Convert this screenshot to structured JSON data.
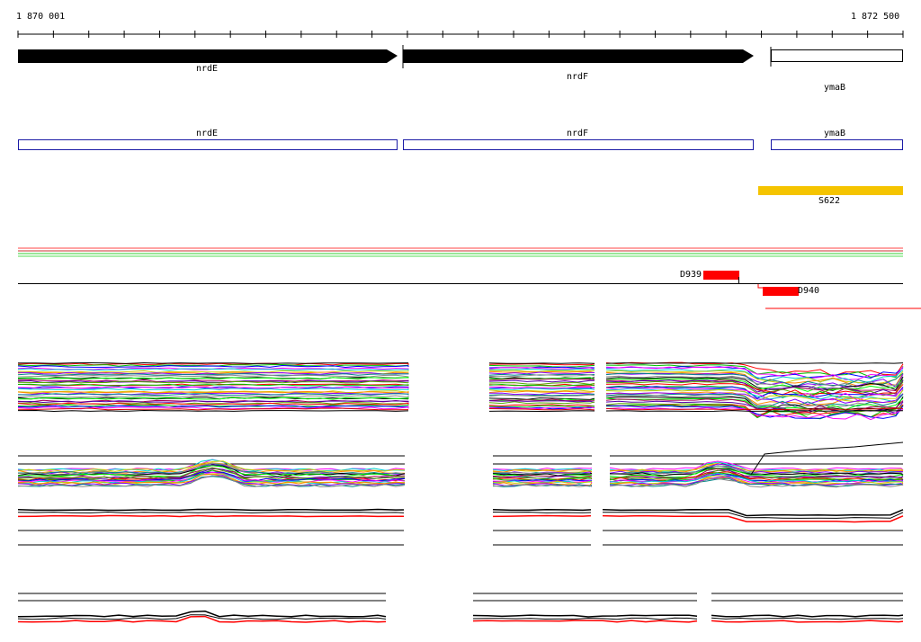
{
  "ruler": {
    "start_label": "1 870 001",
    "end_label": "1 872 500"
  },
  "genes": [
    {
      "name": "nrdE"
    },
    {
      "name": "nrdF"
    },
    {
      "name": "ymaB"
    }
  ],
  "cds_track": [
    {
      "name": "nrdE"
    },
    {
      "name": "nrdF"
    },
    {
      "name": "ymaB"
    }
  ],
  "feature_track": {
    "name": "S622",
    "color": "#f5c400"
  },
  "segments": [
    {
      "name": "D939",
      "color": "#ff0000"
    },
    {
      "name": "D940",
      "color": "#ff0000"
    }
  ],
  "palette": [
    "#ff0000",
    "#00c000",
    "#0000ff",
    "#ff00ff",
    "#00cccc",
    "#cccc00",
    "#ff8800",
    "#8800ff",
    "#008888",
    "#888888",
    "#000000",
    "#00ff00",
    "#aa0055",
    "#5500aa",
    "#55aa00"
  ]
}
